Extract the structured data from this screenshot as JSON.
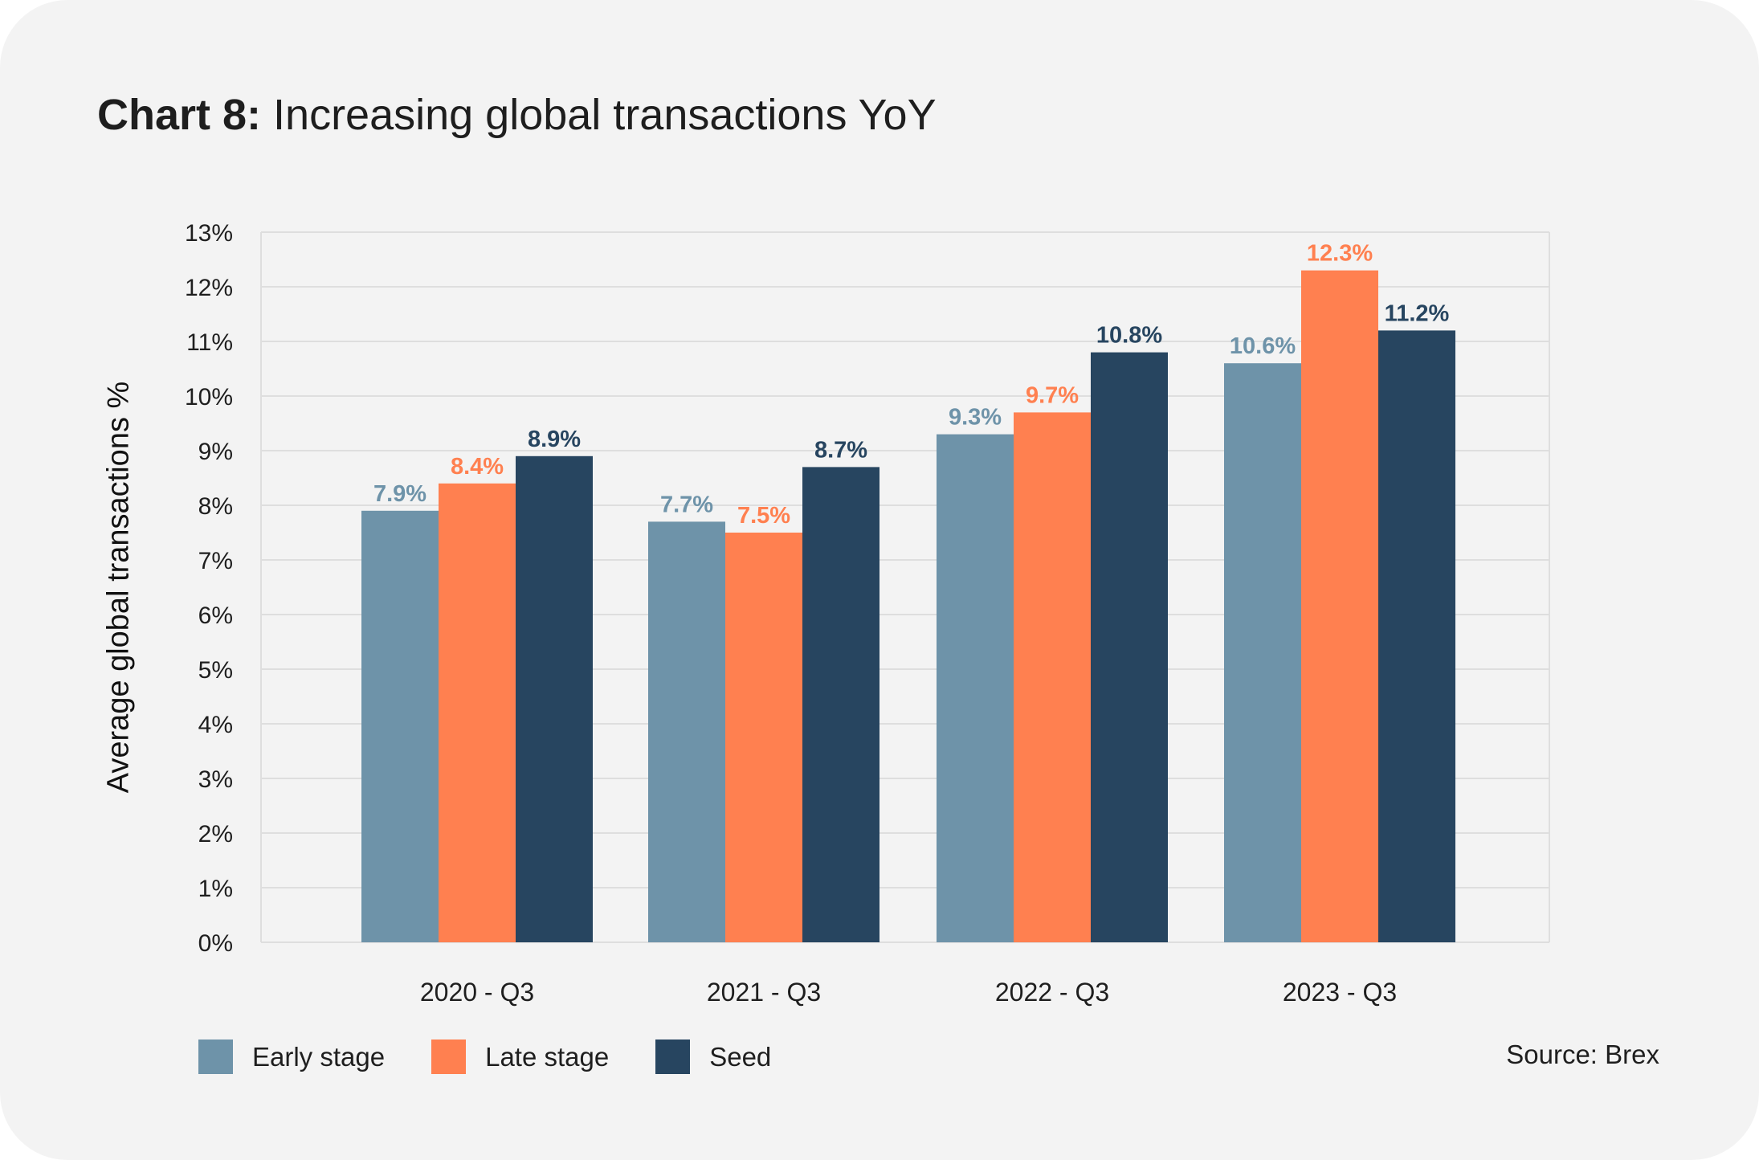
{
  "title_bold": "Chart 8:",
  "title_rest": " Increasing global transactions YoY",
  "source": "Source: Brex",
  "chart_data": {
    "type": "bar",
    "title": "Chart 8: Increasing global transactions YoY",
    "ylabel": "Average global transactions %",
    "xlabel": "",
    "ylim": [
      0,
      13
    ],
    "yticks": [
      "0%",
      "1%",
      "2%",
      "3%",
      "4%",
      "5%",
      "6%",
      "7%",
      "8%",
      "9%",
      "10%",
      "11%",
      "12%",
      "13%"
    ],
    "grid": true,
    "legend_position": "bottom-left",
    "categories": [
      "2020 - Q3",
      "2021 - Q3",
      "2022 - Q3",
      "2023 - Q3"
    ],
    "series": [
      {
        "name": "Early stage",
        "color": "#6e93a9",
        "values": [
          7.9,
          7.7,
          9.3,
          10.6
        ],
        "labels": [
          "7.9%",
          "7.7%",
          "9.3%",
          "10.6%"
        ]
      },
      {
        "name": "Late stage",
        "color": "#ff8050",
        "values": [
          8.4,
          7.5,
          9.7,
          12.3
        ],
        "labels": [
          "8.4%",
          "7.5%",
          "9.7%",
          "12.3%"
        ]
      },
      {
        "name": "Seed",
        "color": "#274560",
        "values": [
          8.9,
          8.7,
          10.8,
          11.2
        ],
        "labels": [
          "8.9%",
          "8.7%",
          "10.8%",
          "11.2%"
        ]
      }
    ]
  }
}
